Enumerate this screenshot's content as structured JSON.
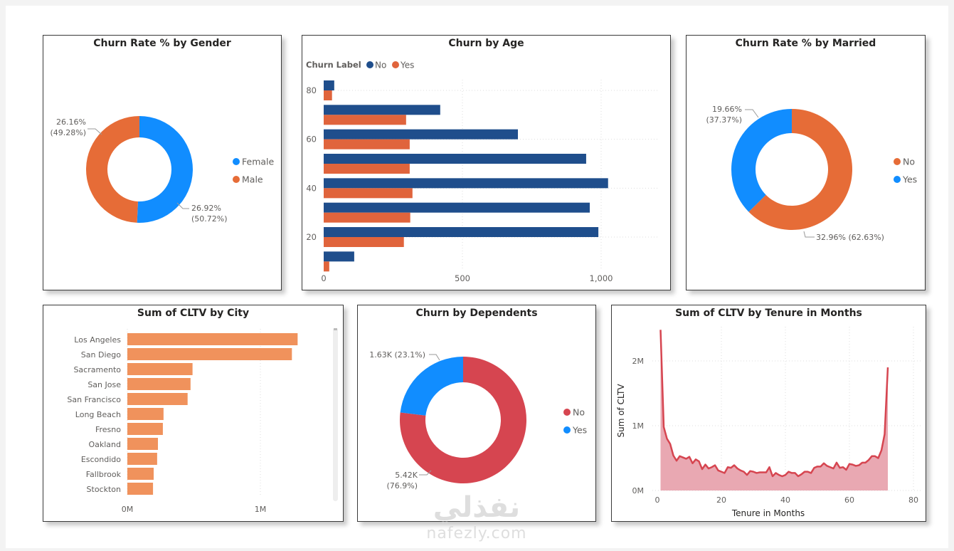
{
  "watermark": {
    "arabic": "نفذلي",
    "latin": "nafezly.com"
  },
  "chart_data": [
    {
      "id": "gender",
      "type": "pie",
      "title": "Churn Rate % by Gender",
      "donut": true,
      "legend_position": "right",
      "slices": [
        {
          "label": "Female",
          "value": 26.92,
          "share_pct": 50.72,
          "label_text": [
            "26.92%",
            "(50.72%)"
          ],
          "color": "#118DFF"
        },
        {
          "label": "Male",
          "value": 26.16,
          "share_pct": 49.28,
          "label_text": [
            "26.16%",
            "(49.28%)"
          ],
          "color": "#E66C37"
        }
      ]
    },
    {
      "id": "age",
      "type": "bar",
      "orientation": "horizontal",
      "title": "Churn by Age",
      "legend_title": "Churn Label",
      "legend_position": "top-left",
      "xlabel": "",
      "ylabel": "",
      "xlim": [
        0,
        1200
      ],
      "xticks": [
        {
          "v": 0,
          "t": "0"
        },
        {
          "v": 500,
          "t": "500"
        },
        {
          "v": 1000,
          "t": "1,000"
        }
      ],
      "yticks": [
        {
          "v": 80,
          "t": "80"
        },
        {
          "v": 60,
          "t": "60"
        },
        {
          "v": 40,
          "t": "40"
        },
        {
          "v": 20,
          "t": "20"
        }
      ],
      "ylim": [
        5,
        85
      ],
      "bin_width": 10,
      "categories": [
        80,
        70,
        60,
        50,
        40,
        30,
        20,
        10
      ],
      "series": [
        {
          "name": "No",
          "color": "#1F4E8C",
          "values": [
            38,
            420,
            700,
            946,
            1025,
            959,
            990,
            110
          ]
        },
        {
          "name": "Yes",
          "color": "#E0643C",
          "values": [
            30,
            297,
            310,
            310,
            320,
            312,
            289,
            20
          ]
        }
      ],
      "grid": true
    },
    {
      "id": "married",
      "type": "pie",
      "title": "Churn Rate % by Married",
      "donut": true,
      "legend_position": "right",
      "slices": [
        {
          "label": "No",
          "value": 32.96,
          "share_pct": 62.63,
          "label_text": [
            "32.96% (62.63%)"
          ],
          "color": "#E66C37"
        },
        {
          "label": "Yes",
          "value": 19.66,
          "share_pct": 37.37,
          "label_text": [
            "19.66%",
            "(37.37%)"
          ],
          "color": "#118DFF"
        }
      ]
    },
    {
      "id": "city",
      "type": "bar",
      "orientation": "horizontal",
      "title": "Sum of CLTV by City",
      "xlabel": "",
      "ylabel": "",
      "xlim": [
        0,
        1500000
      ],
      "xticks": [
        {
          "v": 0,
          "t": "0M"
        },
        {
          "v": 1000000,
          "t": "1M"
        }
      ],
      "categories": [
        "Los Angeles",
        "San Diego",
        "Sacramento",
        "San Jose",
        "San Francisco",
        "Long Beach",
        "Fresno",
        "Oakland",
        "Escondido",
        "Fallbrook",
        "Stockton"
      ],
      "values": [
        1280000,
        1237000,
        490000,
        475000,
        453000,
        272000,
        267000,
        230000,
        224000,
        198000,
        193000
      ],
      "color": "#F0925C",
      "grid": true
    },
    {
      "id": "dependents",
      "type": "pie",
      "title": "Churn by Dependents",
      "donut": true,
      "legend_position": "right",
      "slices": [
        {
          "label": "No",
          "value": 5420,
          "share_pct": 76.9,
          "label_text": [
            "5.42K",
            "(76.9%)"
          ],
          "color": "#D64550"
        },
        {
          "label": "Yes",
          "value": 1630,
          "share_pct": 23.1,
          "label_text": [
            "1.63K (23.1%)"
          ],
          "color": "#118DFF"
        }
      ]
    },
    {
      "id": "tenure",
      "type": "area",
      "title": "Sum of CLTV by Tenure in Months",
      "xlabel": "Tenure in Months",
      "ylabel": "Sum of CLTV",
      "xlim": [
        0,
        80
      ],
      "ylim": [
        0,
        2500000
      ],
      "xticks": [
        {
          "v": 0,
          "t": "0"
        },
        {
          "v": 20,
          "t": "20"
        },
        {
          "v": 40,
          "t": "40"
        },
        {
          "v": 60,
          "t": "60"
        },
        {
          "v": 80,
          "t": "80"
        }
      ],
      "yticks": [
        {
          "v": 0,
          "t": "0M"
        },
        {
          "v": 1000000,
          "t": "1M"
        },
        {
          "v": 2000000,
          "t": "2M"
        }
      ],
      "line_color": "#D64550",
      "fill_color": "#E9A8B2",
      "x": [
        1,
        2,
        3,
        4,
        5,
        6,
        7,
        8,
        9,
        10,
        11,
        12,
        13,
        14,
        15,
        16,
        17,
        18,
        19,
        20,
        21,
        22,
        23,
        24,
        25,
        26,
        27,
        28,
        29,
        30,
        31,
        32,
        33,
        34,
        35,
        36,
        37,
        38,
        39,
        40,
        41,
        42,
        43,
        44,
        45,
        46,
        47,
        48,
        49,
        50,
        51,
        52,
        53,
        54,
        55,
        56,
        57,
        58,
        59,
        60,
        61,
        62,
        63,
        64,
        65,
        66,
        67,
        68,
        69,
        70,
        71,
        72
      ],
      "y": [
        2480000,
        980000,
        800000,
        720000,
        540000,
        460000,
        530000,
        510000,
        490000,
        520000,
        420000,
        480000,
        450000,
        330000,
        400000,
        340000,
        360000,
        390000,
        310000,
        290000,
        270000,
        360000,
        350000,
        390000,
        340000,
        310000,
        290000,
        240000,
        300000,
        290000,
        270000,
        280000,
        280000,
        280000,
        360000,
        220000,
        270000,
        240000,
        220000,
        240000,
        290000,
        270000,
        270000,
        220000,
        250000,
        290000,
        290000,
        270000,
        350000,
        370000,
        370000,
        420000,
        380000,
        360000,
        340000,
        430000,
        350000,
        360000,
        320000,
        410000,
        400000,
        380000,
        390000,
        430000,
        430000,
        470000,
        530000,
        530000,
        500000,
        620000,
        870000,
        1900000
      ],
      "grid": true
    }
  ]
}
